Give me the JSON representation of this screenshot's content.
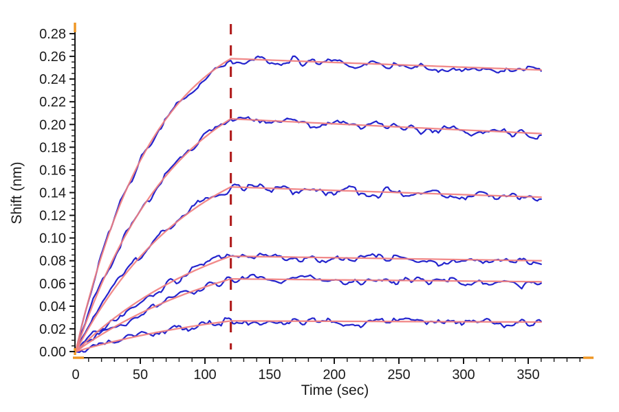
{
  "chart_data": {
    "type": "line",
    "title": "",
    "xlabel": "Time (sec)",
    "ylabel": "Shift (nm)",
    "xlim": [
      0,
      390
    ],
    "ylim": [
      0,
      0.289
    ],
    "grid": false,
    "legend": null,
    "x_axis": {
      "major_tick_step_s": 50,
      "minor_tick_step_s": 10,
      "tick_labels": [
        "0",
        "50",
        "100",
        "150",
        "200",
        "250",
        "300",
        "350"
      ],
      "tick_label_values": [
        0,
        50,
        100,
        150,
        200,
        250,
        300,
        350
      ]
    },
    "y_axis": {
      "major_tick_step_nm": 0.02,
      "minor_tick_step_nm": 0.005,
      "tick_labels": [
        "0.00",
        "0.02",
        "0.04",
        "0.06",
        "0.08",
        "0.10",
        "0.12",
        "0.14",
        "0.16",
        "0.18",
        "0.20",
        "0.22",
        "0.24",
        "0.26",
        "0.28"
      ],
      "tick_label_values": [
        0.0,
        0.02,
        0.04,
        0.06,
        0.08,
        0.1,
        0.12,
        0.14,
        0.16,
        0.18,
        0.2,
        0.22,
        0.24,
        0.26,
        0.28
      ]
    },
    "phase_boundary": {
      "type": "vertical-dashed-line",
      "x_s": 120,
      "color": "#b22222"
    },
    "association_window_s": [
      0,
      120
    ],
    "dissociation_window_s": [
      120,
      360
    ],
    "data_end_s": 360,
    "noise_amplitude_nm": 0.005,
    "series": [
      {
        "id": "trace-1",
        "plateau_nm_at_120s": 0.258,
        "fit_end_nm_at_360s": 0.248,
        "kobs_per_s": 0.0165
      },
      {
        "id": "trace-2",
        "plateau_nm_at_120s": 0.205,
        "fit_end_nm_at_360s": 0.192,
        "kobs_per_s": 0.013
      },
      {
        "id": "trace-3",
        "plateau_nm_at_120s": 0.145,
        "fit_end_nm_at_360s": 0.136,
        "kobs_per_s": 0.011
      },
      {
        "id": "trace-4",
        "plateau_nm_at_120s": 0.084,
        "fit_end_nm_at_360s": 0.08,
        "kobs_per_s": 0.0085
      },
      {
        "id": "trace-5",
        "plateau_nm_at_120s": 0.064,
        "fit_end_nm_at_360s": 0.0615,
        "kobs_per_s": 0.0075
      },
      {
        "id": "trace-6",
        "plateau_nm_at_120s": 0.027,
        "fit_end_nm_at_360s": 0.026,
        "kobs_per_s": 0.007
      }
    ],
    "colors": {
      "data_trace": "#2323cd",
      "fit_curve": "#f08080",
      "axis": "#161616",
      "axis_end_cap": "#ee9522",
      "phase_boundary": "#b22222",
      "text": "#1a1a1a"
    }
  }
}
